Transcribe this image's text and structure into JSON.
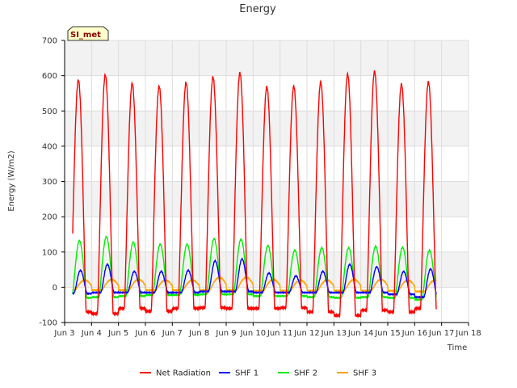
{
  "chart_data": {
    "type": "line",
    "title": "Energy",
    "xlabel": "Time",
    "ylabel": "Energy (W/m2)",
    "site_badge": "SI_met",
    "xlim": [
      3,
      18
    ],
    "ylim": [
      -100,
      700
    ],
    "x_ticks": [
      3,
      4,
      5,
      6,
      7,
      8,
      9,
      10,
      11,
      12,
      13,
      14,
      15,
      16,
      17,
      18
    ],
    "x_tick_labels": [
      "Jun 3",
      "Jun 4",
      "Jun 5",
      "Jun 6",
      "Jun 7",
      "Jun 8",
      "Jun 9",
      "Jun 10",
      "Jun 11",
      "Jun 12",
      "Jun 13",
      "Jun 14",
      "Jun 15",
      "Jun 16",
      "Jun 17",
      "Jun 18"
    ],
    "y_ticks": [
      -100,
      0,
      100,
      200,
      300,
      400,
      500,
      600,
      700
    ],
    "grid": true,
    "legend_position": "bottom",
    "days": [
      3,
      4,
      5,
      6,
      7,
      8,
      9,
      10,
      11,
      12,
      13,
      14,
      15,
      16
    ],
    "data_start": 3.3,
    "data_end": 16.8,
    "series": [
      {
        "name": "Net Radiation",
        "color": "#ff0000",
        "daily_peak": [
          588,
          602,
          578,
          570,
          580,
          596,
          608,
          568,
          570,
          582,
          604,
          612,
          576,
          582
        ],
        "night_value": [
          -70,
          -75,
          -60,
          -68,
          -60,
          -58,
          -60,
          -60,
          -58,
          -70,
          -80,
          -65,
          -70,
          -60
        ]
      },
      {
        "name": "SHF 1",
        "color": "#0000ff",
        "daily_peak": [
          48,
          65,
          45,
          45,
          48,
          75,
          80,
          40,
          32,
          45,
          65,
          58,
          45,
          52
        ],
        "night_value": [
          -18,
          -15,
          -15,
          -15,
          -15,
          -12,
          -12,
          -15,
          -15,
          -15,
          -15,
          -15,
          -20,
          -28
        ]
      },
      {
        "name": "SHF 2",
        "color": "#00ee00",
        "daily_peak": [
          132,
          143,
          128,
          122,
          122,
          138,
          136,
          118,
          105,
          112,
          112,
          116,
          113,
          105
        ],
        "night_value": [
          -30,
          -28,
          -25,
          -22,
          -22,
          -20,
          -20,
          -25,
          -25,
          -28,
          -30,
          -28,
          -30,
          -35
        ]
      },
      {
        "name": "SHF 3",
        "color": "#ffa500",
        "daily_peak": [
          20,
          22,
          22,
          20,
          20,
          28,
          28,
          22,
          20,
          20,
          22,
          22,
          20,
          20
        ],
        "night_value": [
          -8,
          -8,
          -8,
          -8,
          -8,
          -8,
          -8,
          -10,
          -10,
          -10,
          -10,
          -10,
          -10,
          -12
        ]
      }
    ]
  }
}
